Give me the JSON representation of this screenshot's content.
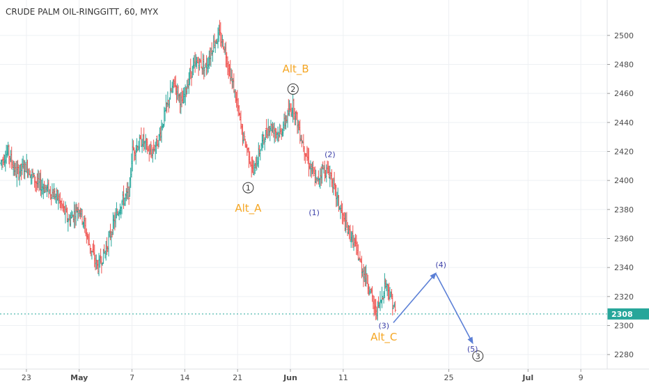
{
  "chart_data": {
    "type": "ohlc",
    "title": "CRUDE PALM OIL-RINGGITT, 60, MYX",
    "colors": {
      "up": "#26a69a",
      "down": "#ef5350",
      "projection": "#5b7fd6",
      "orange": "#f5a623",
      "wave": "#333333",
      "current": "#26a69a"
    },
    "ylim": [
      2270,
      2510
    ],
    "y_ticks": [
      2280,
      2300,
      2320,
      2340,
      2360,
      2380,
      2400,
      2420,
      2440,
      2460,
      2480,
      2500
    ],
    "x_tick_labels": [
      "23",
      "May",
      "7",
      "14",
      "21",
      "Jun",
      "11",
      "25",
      "Jul",
      "9"
    ],
    "x_tick_pos": [
      0.5,
      1.5,
      2.5,
      3.5,
      4.5,
      5.5,
      6.5,
      8.5,
      10.0,
      11.0
    ],
    "x_range": [
      0,
      11.5
    ],
    "current_price": {
      "value": 2308,
      "label": "2308"
    },
    "price_path": [
      [
        0.0,
        2412
      ],
      [
        0.15,
        2420
      ],
      [
        0.3,
        2405
      ],
      [
        0.5,
        2410
      ],
      [
        0.7,
        2398
      ],
      [
        0.9,
        2394
      ],
      [
        1.1,
        2388
      ],
      [
        1.3,
        2372
      ],
      [
        1.5,
        2382
      ],
      [
        1.7,
        2355
      ],
      [
        1.85,
        2340
      ],
      [
        2.0,
        2352
      ],
      [
        2.15,
        2370
      ],
      [
        2.3,
        2385
      ],
      [
        2.45,
        2392
      ],
      [
        2.5,
        2420
      ],
      [
        2.7,
        2428
      ],
      [
        2.85,
        2418
      ],
      [
        3.0,
        2428
      ],
      [
        3.15,
        2450
      ],
      [
        3.3,
        2468
      ],
      [
        3.45,
        2452
      ],
      [
        3.6,
        2474
      ],
      [
        3.75,
        2482
      ],
      [
        3.9,
        2478
      ],
      [
        4.05,
        2495
      ],
      [
        4.15,
        2500
      ],
      [
        4.25,
        2492
      ],
      [
        4.35,
        2475
      ],
      [
        4.45,
        2460
      ],
      [
        4.6,
        2430
      ],
      [
        4.7,
        2420
      ],
      [
        4.8,
        2405
      ],
      [
        4.95,
        2425
      ],
      [
        5.1,
        2438
      ],
      [
        5.3,
        2432
      ],
      [
        5.45,
        2445
      ],
      [
        5.55,
        2452
      ],
      [
        5.7,
        2430
      ],
      [
        5.85,
        2412
      ],
      [
        6.0,
        2398
      ],
      [
        6.1,
        2408
      ],
      [
        6.25,
        2405
      ],
      [
        6.4,
        2385
      ],
      [
        6.55,
        2368
      ],
      [
        6.7,
        2358
      ],
      [
        6.85,
        2340
      ],
      [
        7.0,
        2326
      ],
      [
        7.1,
        2310
      ],
      [
        7.2,
        2315
      ],
      [
        7.3,
        2330
      ],
      [
        7.4,
        2320
      ],
      [
        7.5,
        2308
      ]
    ],
    "projection": [
      {
        "x": 7.45,
        "y": 2302
      },
      {
        "x": 8.25,
        "y": 2336
      },
      {
        "x": 8.95,
        "y": 2288
      }
    ],
    "wave_labels": [
      {
        "text": "1",
        "x": 4.7,
        "y": 2395,
        "style": "circle"
      },
      {
        "text": "2",
        "x": 5.55,
        "y": 2463,
        "style": "circle"
      },
      {
        "text": "3",
        "x": 9.05,
        "y": 2279,
        "style": "circle"
      },
      {
        "text": "(1)",
        "x": 5.95,
        "y": 2378,
        "style": "paren"
      },
      {
        "text": "(2)",
        "x": 6.25,
        "y": 2418,
        "style": "paren"
      },
      {
        "text": "(3)",
        "x": 7.27,
        "y": 2300,
        "style": "paren"
      },
      {
        "text": "(4)",
        "x": 8.35,
        "y": 2342,
        "style": "paren"
      },
      {
        "text": "(5)",
        "x": 8.95,
        "y": 2284,
        "style": "paren"
      },
      {
        "text": "Alt_A",
        "x": 4.7,
        "y": 2381,
        "style": "orange"
      },
      {
        "text": "Alt_B",
        "x": 5.6,
        "y": 2477,
        "style": "orange"
      },
      {
        "text": "Alt_C",
        "x": 7.27,
        "y": 2292,
        "style": "orange"
      }
    ]
  }
}
